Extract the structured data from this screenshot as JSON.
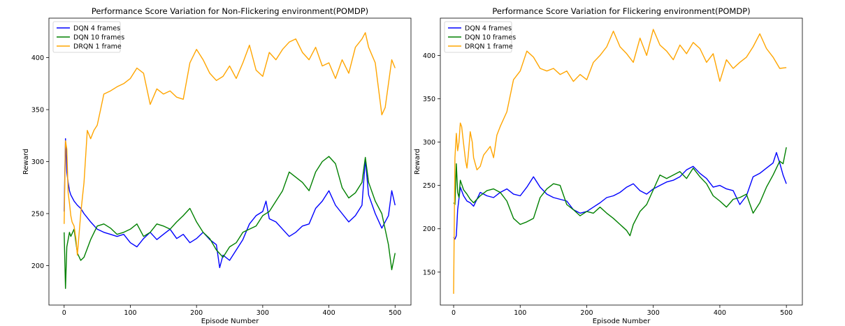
{
  "chart_data": [
    {
      "type": "line",
      "title": "Performance Score Variation for Non-Flickering environment(POMDP)",
      "xlabel": "Episode Number",
      "ylabel": "Reward",
      "xlim": [
        -23,
        524
      ],
      "ylim": [
        162,
        438
      ],
      "xticks": [
        0,
        100,
        200,
        300,
        400,
        500
      ],
      "yticks": [
        200,
        250,
        300,
        350,
        400
      ],
      "legend": "top-left",
      "grid": false,
      "series": [
        {
          "name": "DQN 4 frames",
          "color": "#0000ff",
          "x": [
            0,
            2,
            4,
            6,
            8,
            10,
            15,
            20,
            25,
            30,
            40,
            50,
            60,
            70,
            80,
            90,
            100,
            110,
            120,
            130,
            140,
            150,
            160,
            170,
            180,
            190,
            200,
            210,
            220,
            230,
            235,
            240,
            250,
            260,
            270,
            280,
            290,
            300,
            305,
            310,
            320,
            330,
            340,
            350,
            360,
            370,
            380,
            390,
            400,
            410,
            420,
            430,
            440,
            450,
            455,
            460,
            470,
            480,
            490,
            495,
            500
          ],
          "values": [
            252,
            322,
            290,
            280,
            272,
            268,
            262,
            258,
            255,
            250,
            242,
            235,
            232,
            230,
            228,
            230,
            222,
            218,
            226,
            232,
            225,
            230,
            235,
            226,
            230,
            222,
            226,
            232,
            225,
            220,
            198,
            210,
            205,
            215,
            225,
            240,
            248,
            252,
            262,
            245,
            242,
            235,
            228,
            232,
            238,
            240,
            255,
            262,
            272,
            258,
            250,
            242,
            248,
            258,
            302,
            268,
            250,
            236,
            248,
            272,
            258
          ]
        },
        {
          "name": "DQN 10 frames",
          "color": "#008000",
          "x": [
            0,
            2,
            4,
            6,
            8,
            10,
            15,
            20,
            25,
            30,
            40,
            50,
            60,
            70,
            80,
            90,
            100,
            110,
            120,
            130,
            140,
            150,
            160,
            170,
            180,
            190,
            200,
            210,
            220,
            230,
            240,
            250,
            260,
            270,
            280,
            290,
            300,
            310,
            320,
            330,
            340,
            350,
            360,
            370,
            380,
            390,
            400,
            410,
            420,
            430,
            440,
            450,
            455,
            460,
            470,
            480,
            490,
            495,
            500
          ],
          "values": [
            232,
            178,
            218,
            225,
            232,
            228,
            235,
            212,
            205,
            208,
            225,
            238,
            240,
            236,
            230,
            232,
            235,
            240,
            228,
            232,
            240,
            238,
            235,
            242,
            248,
            255,
            242,
            232,
            226,
            215,
            208,
            218,
            222,
            232,
            235,
            238,
            248,
            252,
            262,
            272,
            290,
            285,
            280,
            272,
            290,
            300,
            305,
            298,
            275,
            265,
            270,
            280,
            304,
            280,
            262,
            250,
            220,
            196,
            212
          ]
        },
        {
          "name": "DRQN 1 frame",
          "color": "#ffa500",
          "x": [
            0,
            2,
            4,
            6,
            8,
            10,
            12,
            15,
            18,
            20,
            25,
            30,
            35,
            40,
            45,
            50,
            55,
            60,
            70,
            80,
            90,
            100,
            110,
            120,
            130,
            140,
            150,
            160,
            170,
            180,
            190,
            200,
            210,
            220,
            230,
            240,
            250,
            260,
            270,
            280,
            290,
            300,
            310,
            320,
            330,
            340,
            350,
            360,
            370,
            380,
            390,
            400,
            410,
            420,
            430,
            440,
            450,
            455,
            460,
            470,
            480,
            485,
            490,
            495,
            500
          ],
          "values": [
            240,
            320,
            312,
            270,
            260,
            248,
            242,
            238,
            225,
            210,
            250,
            280,
            330,
            322,
            330,
            335,
            350,
            365,
            368,
            372,
            375,
            380,
            390,
            385,
            355,
            370,
            365,
            368,
            362,
            360,
            395,
            408,
            398,
            385,
            378,
            382,
            392,
            380,
            395,
            412,
            388,
            382,
            405,
            398,
            408,
            415,
            418,
            405,
            398,
            410,
            392,
            395,
            380,
            398,
            385,
            410,
            418,
            424,
            410,
            395,
            345,
            352,
            375,
            398,
            390
          ]
        }
      ]
    },
    {
      "type": "line",
      "title": "Performance Score Variation for Flickering environment(POMDP)",
      "xlabel": "Episode Number",
      "ylabel": "Reward",
      "xlim": [
        -20,
        524
      ],
      "ylim": [
        112,
        443
      ],
      "xticks": [
        0,
        100,
        200,
        300,
        400,
        500
      ],
      "yticks": [
        150,
        200,
        250,
        300,
        350,
        400
      ],
      "legend": "top-left",
      "grid": false,
      "series": [
        {
          "name": "DQN 4 frames",
          "color": "#0000ff",
          "x": [
            0,
            2,
            4,
            6,
            8,
            10,
            15,
            20,
            25,
            30,
            40,
            50,
            60,
            70,
            80,
            90,
            100,
            110,
            120,
            130,
            140,
            150,
            160,
            170,
            180,
            190,
            200,
            210,
            220,
            230,
            240,
            250,
            260,
            270,
            280,
            290,
            300,
            310,
            320,
            330,
            340,
            350,
            360,
            370,
            380,
            390,
            400,
            410,
            420,
            430,
            440,
            450,
            460,
            470,
            480,
            485,
            490,
            495,
            500
          ],
          "values": [
            190,
            188,
            192,
            222,
            235,
            248,
            238,
            232,
            230,
            226,
            242,
            238,
            236,
            242,
            246,
            240,
            238,
            248,
            260,
            248,
            240,
            236,
            234,
            232,
            222,
            218,
            220,
            225,
            230,
            236,
            238,
            242,
            248,
            252,
            244,
            240,
            246,
            250,
            254,
            256,
            260,
            268,
            272,
            264,
            258,
            248,
            250,
            246,
            244,
            228,
            238,
            260,
            264,
            270,
            276,
            288,
            276,
            262,
            252
          ]
        },
        {
          "name": "DQN 10 frames",
          "color": "#008000",
          "x": [
            0,
            2,
            4,
            6,
            8,
            10,
            15,
            20,
            25,
            30,
            40,
            50,
            60,
            70,
            80,
            90,
            100,
            110,
            120,
            130,
            140,
            150,
            160,
            170,
            180,
            190,
            200,
            210,
            220,
            230,
            240,
            250,
            260,
            265,
            270,
            280,
            290,
            300,
            310,
            320,
            330,
            340,
            350,
            360,
            370,
            380,
            390,
            400,
            410,
            420,
            430,
            440,
            450,
            460,
            470,
            480,
            490,
            495,
            500
          ],
          "values": [
            230,
            228,
            275,
            242,
            236,
            256,
            245,
            240,
            234,
            230,
            238,
            244,
            246,
            242,
            232,
            212,
            205,
            208,
            212,
            236,
            246,
            252,
            250,
            228,
            222,
            215,
            220,
            218,
            225,
            218,
            212,
            205,
            198,
            192,
            205,
            220,
            228,
            245,
            262,
            258,
            262,
            266,
            258,
            270,
            260,
            252,
            238,
            232,
            225,
            234,
            236,
            240,
            218,
            230,
            248,
            262,
            278,
            275,
            294
          ]
        },
        {
          "name": "DRQN 1 frame",
          "color": "#ffa500",
          "x": [
            0,
            2,
            4,
            6,
            8,
            10,
            12,
            15,
            18,
            20,
            22,
            25,
            28,
            30,
            35,
            40,
            45,
            50,
            55,
            60,
            65,
            70,
            80,
            90,
            100,
            110,
            120,
            130,
            140,
            150,
            160,
            170,
            180,
            190,
            200,
            210,
            220,
            230,
            240,
            250,
            260,
            270,
            280,
            290,
            300,
            310,
            320,
            330,
            340,
            350,
            360,
            370,
            380,
            390,
            400,
            410,
            420,
            430,
            440,
            450,
            460,
            470,
            480,
            490,
            500
          ],
          "values": [
            125,
            282,
            310,
            290,
            300,
            322,
            318,
            298,
            278,
            270,
            285,
            312,
            300,
            282,
            268,
            272,
            285,
            290,
            295,
            282,
            308,
            318,
            335,
            372,
            382,
            405,
            398,
            385,
            382,
            385,
            378,
            382,
            370,
            378,
            372,
            392,
            400,
            410,
            428,
            410,
            402,
            392,
            420,
            400,
            430,
            412,
            405,
            395,
            412,
            402,
            415,
            408,
            392,
            402,
            370,
            395,
            385,
            392,
            398,
            410,
            425,
            408,
            398,
            385,
            386
          ]
        }
      ]
    }
  ]
}
